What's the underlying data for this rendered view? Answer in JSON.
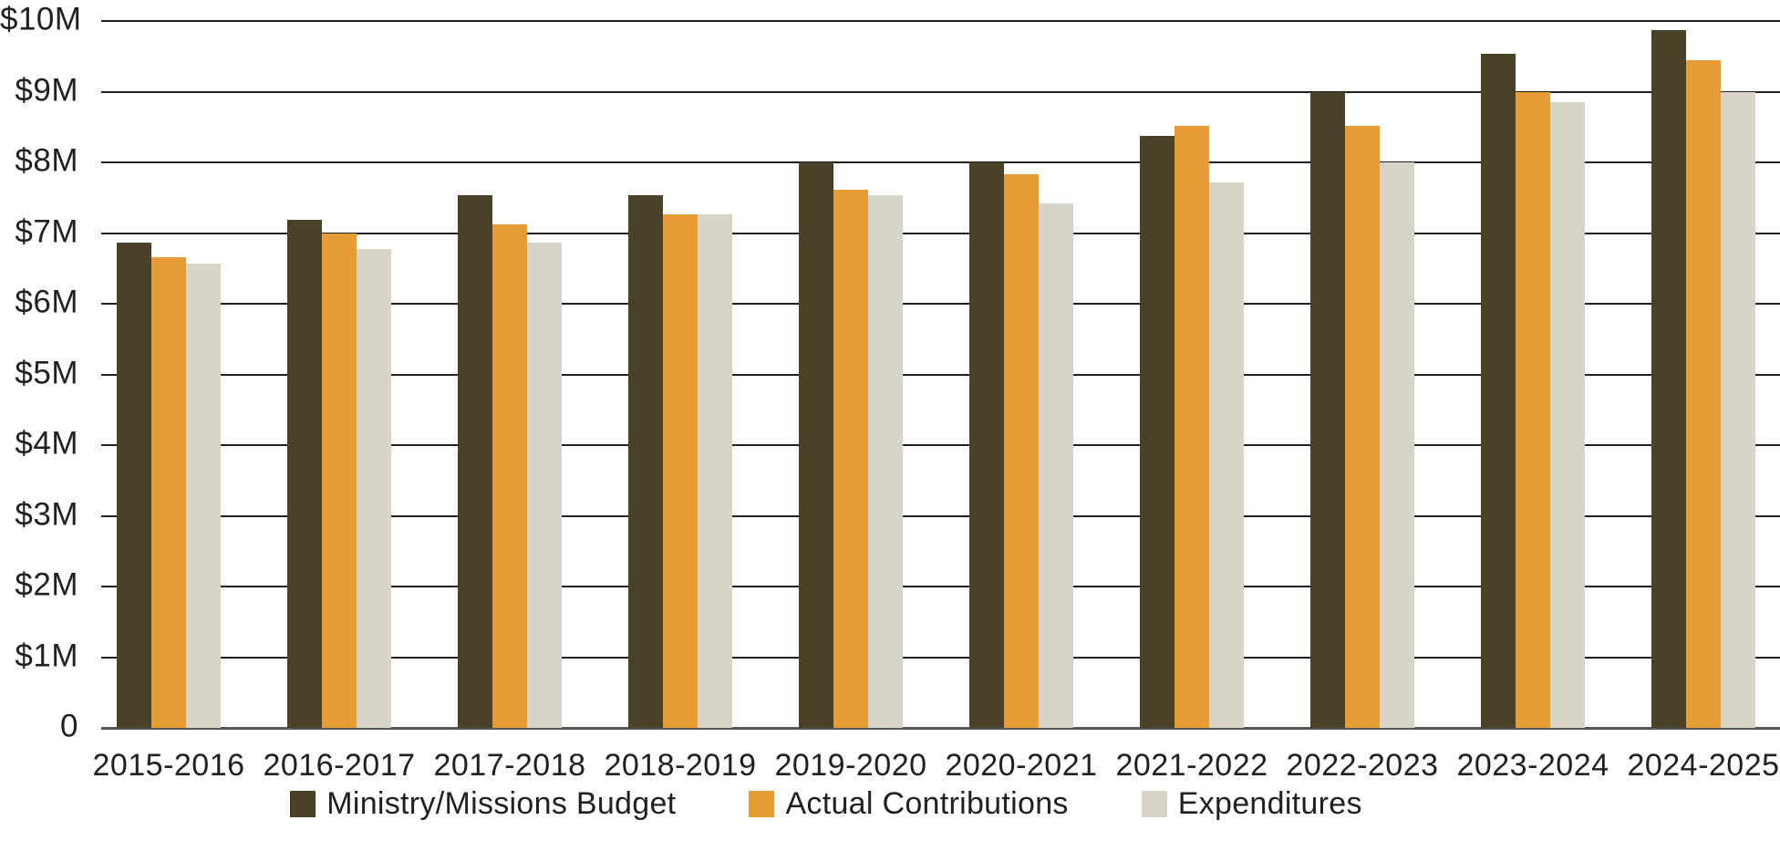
{
  "chart_data": {
    "type": "bar",
    "title": "",
    "xlabel": "",
    "ylabel": "",
    "ylim": [
      0,
      10
    ],
    "grid": true,
    "legend_position": "bottom",
    "ytick_labels": [
      "0",
      "$1M",
      "$2M",
      "$3M",
      "$4M",
      "$5M",
      "$6M",
      "$7M",
      "$8M",
      "$9M",
      "$10M"
    ],
    "categories": [
      "2015-2016",
      "2016-2017",
      "2017-2018",
      "2018-2019",
      "2019-2020",
      "2020-2021",
      "2021-2022",
      "2022-2023",
      "2023-2024",
      "2024-2025"
    ],
    "series": [
      {
        "name": "Ministry/Missions Budget",
        "color": "#4a4228",
        "values": [
          6.87,
          7.19,
          7.53,
          7.53,
          8.0,
          8.0,
          8.37,
          9.0,
          9.53,
          9.87
        ]
      },
      {
        "name": "Actual Contributions",
        "color": "#e89c35",
        "values": [
          6.66,
          7.0,
          7.12,
          7.27,
          7.61,
          7.83,
          8.52,
          8.52,
          9.0,
          9.44
        ]
      },
      {
        "name": "Expenditures",
        "color": "#d9d4c8",
        "values": [
          6.57,
          6.77,
          6.86,
          7.27,
          7.53,
          7.42,
          7.72,
          8.0,
          8.85,
          9.0
        ]
      }
    ]
  }
}
